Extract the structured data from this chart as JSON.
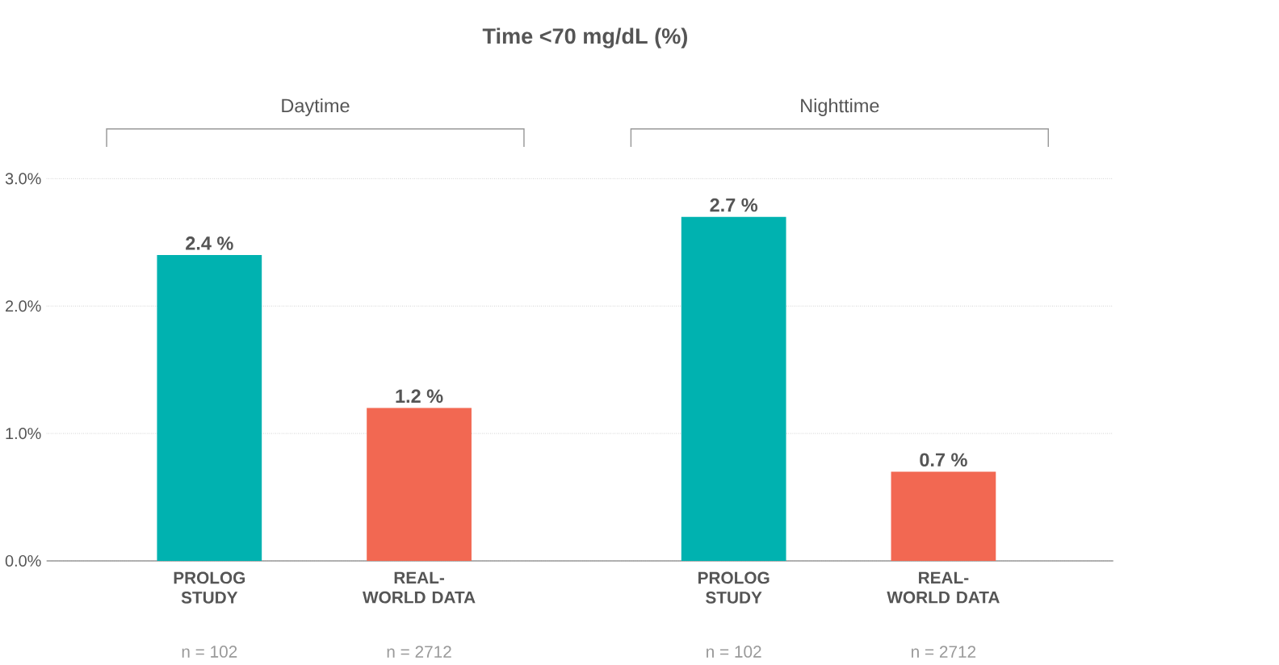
{
  "chart_data": {
    "type": "bar",
    "title": "Time <70 mg/dL (%)",
    "categories": [
      "PROLOG STUDY",
      "REAL-WORLD DATA",
      "PROLOG STUDY",
      "REAL-WORLD DATA"
    ],
    "values": [
      2.4,
      1.2,
      2.7,
      0.7
    ],
    "colors": [
      "#00b2b0",
      "#f26852",
      "#00b2b0",
      "#f26852"
    ],
    "value_labels": [
      "2.4 %",
      "1.2 %",
      "2.7 %",
      "0.7 %"
    ],
    "ylim": [
      0,
      3
    ],
    "yticks": [
      {
        "value": 0,
        "label": "0.0%"
      },
      {
        "value": 1,
        "label": "1.0%"
      },
      {
        "value": 2,
        "label": "2.0%"
      },
      {
        "value": 3,
        "label": "3.0%"
      }
    ],
    "grid": "y",
    "annotations": [
      "Daytime",
      "Nighttime",
      "n = 102",
      "n = 2712",
      "n = 102",
      "n = 2712"
    ]
  }
}
